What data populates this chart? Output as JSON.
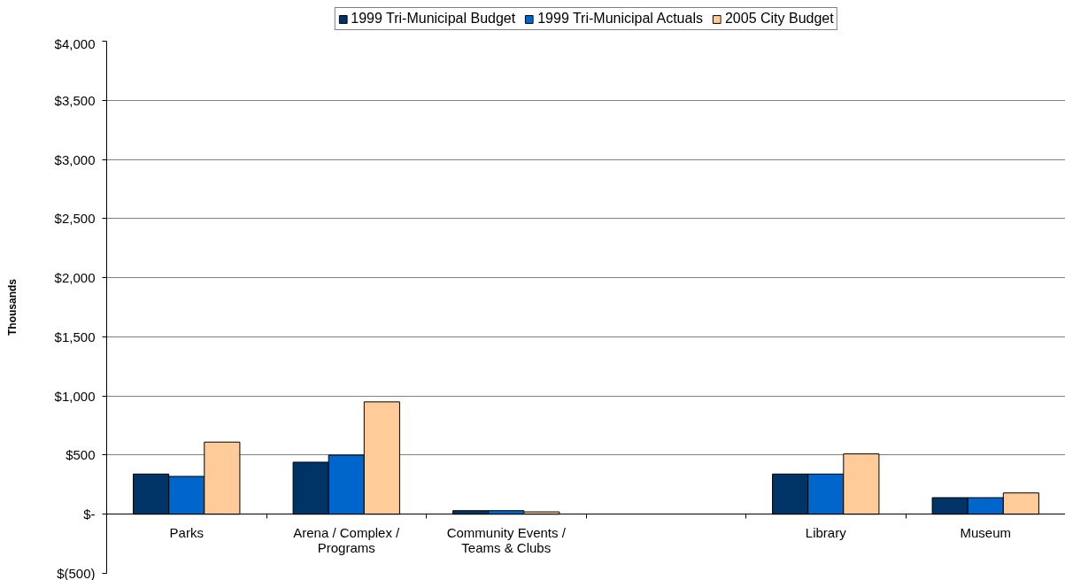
{
  "chart_data": {
    "type": "bar",
    "ylabel": "Thousands",
    "categories": [
      "Parks",
      "Arena / Complex / Programs",
      "Community Events / Teams & Clubs",
      null,
      "Library",
      "Museum"
    ],
    "series": [
      {
        "name": "1999 Tri-Municipal Budget",
        "color": "#003366",
        "values": [
          340,
          440,
          30,
          null,
          340,
          140
        ]
      },
      {
        "name": "1999 Tri-Municipal Actuals",
        "color": "#0066cc",
        "values": [
          320,
          500,
          30,
          null,
          340,
          140
        ]
      },
      {
        "name": "2005 City Budget",
        "color": "#ffcc99",
        "values": [
          610,
          950,
          20,
          null,
          510,
          180
        ]
      }
    ],
    "ylim": [
      -500,
      4000
    ],
    "yticks": [
      {
        "value": -500,
        "label": "$(500)"
      },
      {
        "value": 0,
        "label": "$-"
      },
      {
        "value": 500,
        "label": "$500"
      },
      {
        "value": 1000,
        "label": "$1,000"
      },
      {
        "value": 1500,
        "label": "$1,500"
      },
      {
        "value": 2000,
        "label": "$2,000"
      },
      {
        "value": 2500,
        "label": "$2,500"
      },
      {
        "value": 3000,
        "label": "$3,000"
      },
      {
        "value": 3500,
        "label": "$3,500"
      },
      {
        "value": 4000,
        "label": "$4,000"
      }
    ],
    "grid": "y",
    "legend": "top"
  }
}
